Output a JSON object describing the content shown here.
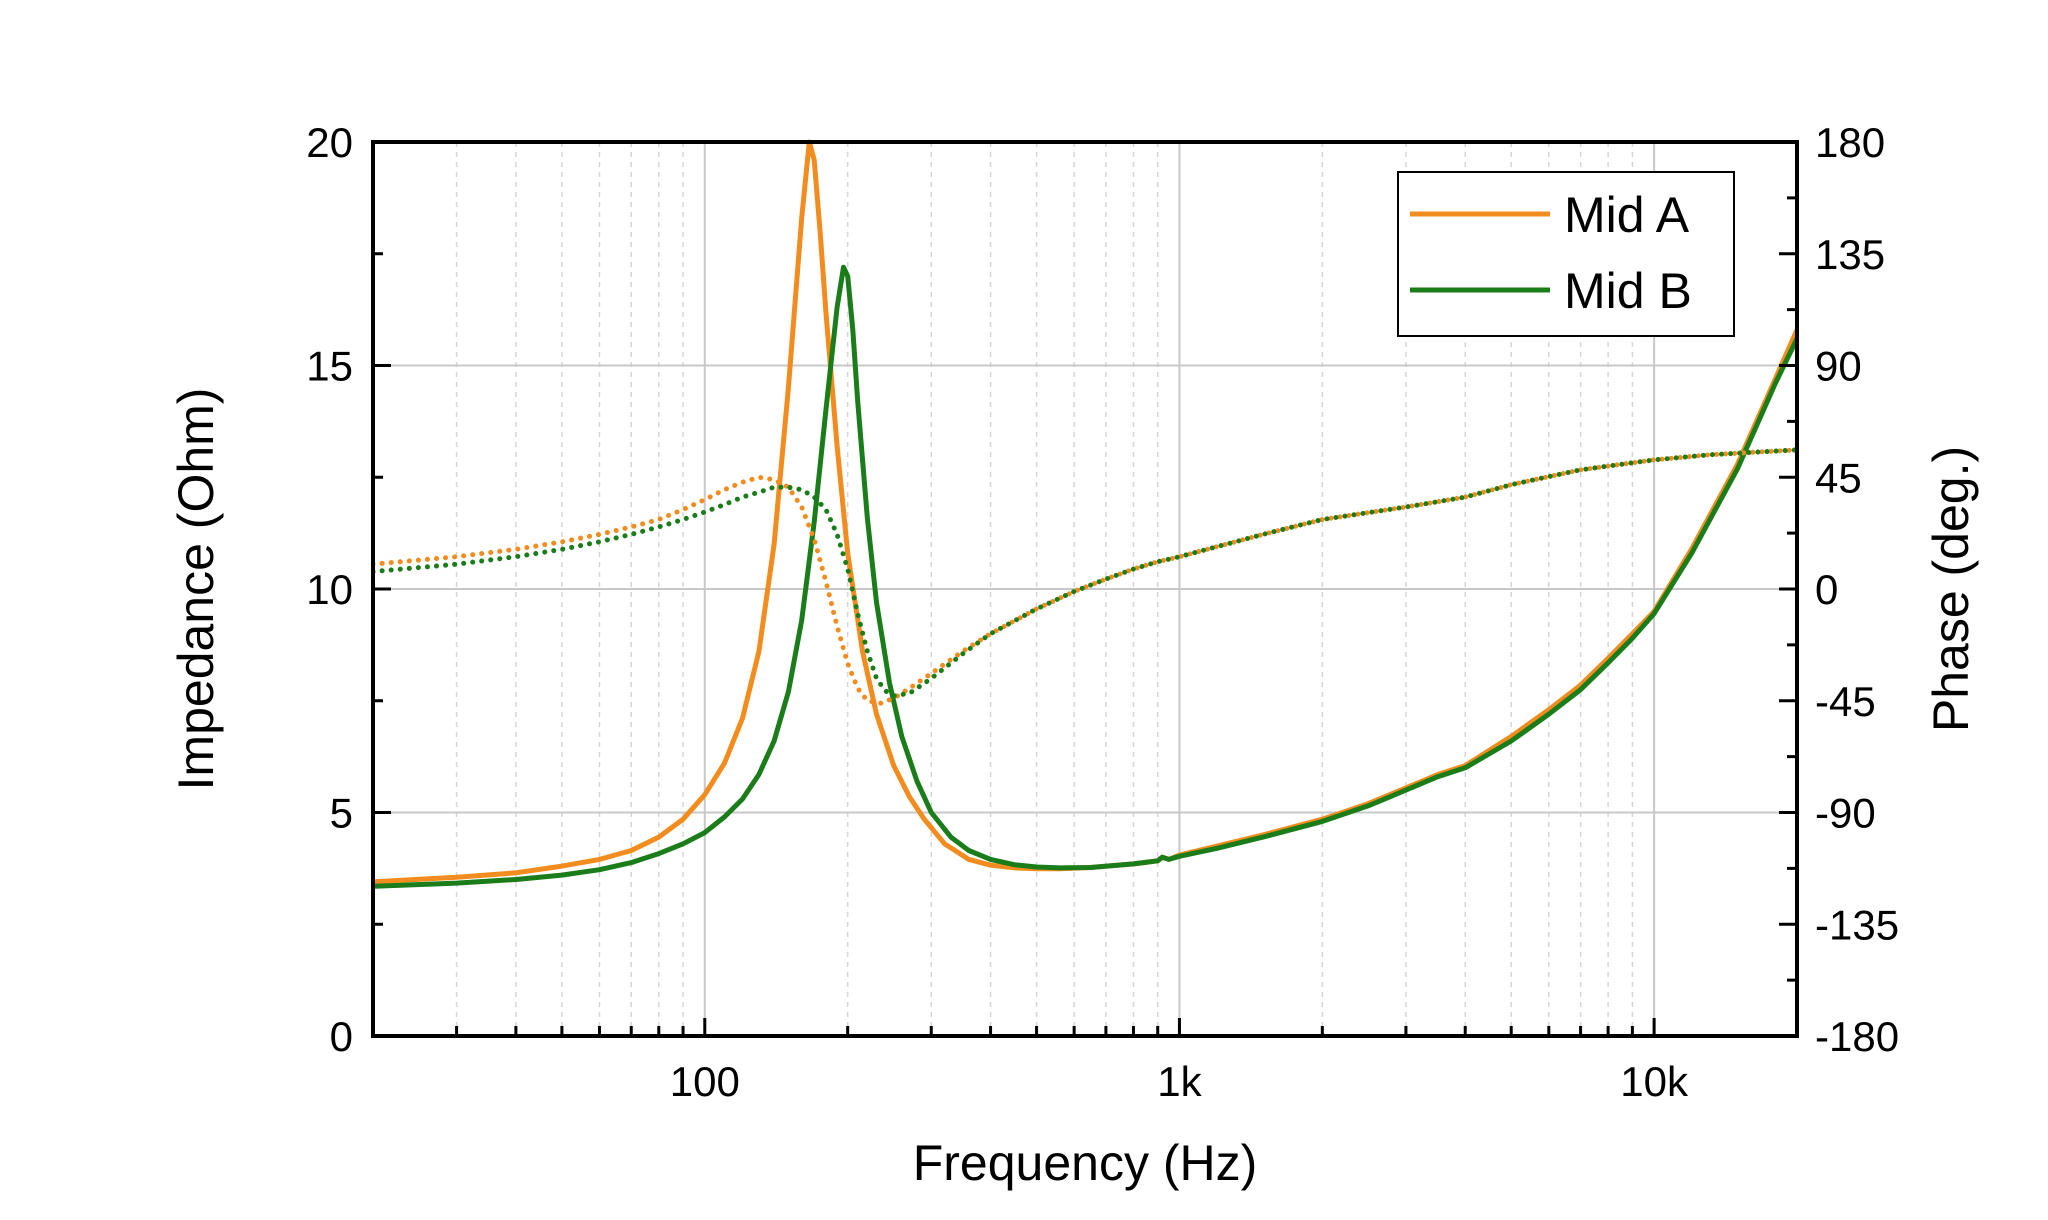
{
  "chart_data": {
    "type": "line",
    "xlabel": "Frequency (Hz)",
    "ylabel_left": "Impedance (Ohm)",
    "ylabel_right": "Phase (deg.)",
    "xscale": "log",
    "xlim": [
      20,
      20000
    ],
    "ylim_left": [
      0,
      20
    ],
    "ylim_right": [
      -180,
      180
    ],
    "x_ticks": [
      100,
      1000,
      10000
    ],
    "x_tick_labels": [
      "100",
      "1k",
      "10k"
    ],
    "y_left_ticks": [
      0,
      5,
      10,
      15,
      20
    ],
    "y_left_tick_labels": [
      "0",
      "5",
      "10",
      "15",
      "20"
    ],
    "y_right_ticks": [
      -180,
      -135,
      -90,
      -45,
      0,
      45,
      90,
      135,
      180
    ],
    "y_right_tick_labels": [
      "-180",
      "-135",
      "-90",
      "-45",
      "0",
      "45",
      "90",
      "135",
      "180"
    ],
    "grid": true,
    "legend_position": "top-right",
    "colors": {
      "Mid A": "#F28C1E",
      "Mid B": "#1A7D1A"
    },
    "series": [
      {
        "name": "Mid A",
        "axis": "left",
        "style": "solid",
        "x": [
          20,
          30,
          40,
          50,
          60,
          70,
          80,
          90,
          100,
          110,
          120,
          130,
          140,
          150,
          160,
          166,
          170,
          175,
          180,
          190,
          200,
          215,
          230,
          250,
          270,
          290,
          320,
          360,
          400,
          450,
          500,
          560,
          650,
          800,
          900,
          920,
          950,
          1000,
          1200,
          1500,
          2000,
          2500,
          3000,
          3500,
          4000,
          5000,
          6000,
          7000,
          8000,
          9000,
          10000,
          12000,
          15000,
          18000,
          20000
        ],
        "y": [
          3.45,
          3.55,
          3.65,
          3.8,
          3.95,
          4.15,
          4.45,
          4.85,
          5.4,
          6.1,
          7.1,
          8.6,
          11.0,
          14.5,
          18.3,
          20.0,
          19.6,
          18.0,
          16.2,
          13.2,
          10.8,
          8.6,
          7.2,
          6.05,
          5.35,
          4.85,
          4.3,
          3.95,
          3.82,
          3.76,
          3.74,
          3.74,
          3.77,
          3.85,
          3.92,
          4.0,
          3.95,
          4.05,
          4.25,
          4.5,
          4.85,
          5.2,
          5.55,
          5.85,
          6.05,
          6.7,
          7.3,
          7.85,
          8.45,
          9.0,
          9.5,
          10.9,
          12.8,
          14.7,
          15.8
        ]
      },
      {
        "name": "Mid B",
        "axis": "left",
        "style": "solid",
        "x": [
          20,
          30,
          40,
          50,
          60,
          70,
          80,
          90,
          100,
          110,
          120,
          130,
          140,
          150,
          160,
          170,
          180,
          190,
          196,
          200,
          205,
          210,
          220,
          230,
          245,
          260,
          280,
          300,
          330,
          360,
          400,
          450,
          500,
          560,
          650,
          800,
          900,
          920,
          950,
          1000,
          1200,
          1500,
          2000,
          2500,
          3000,
          3500,
          4000,
          5000,
          6000,
          7000,
          8000,
          9000,
          10000,
          12000,
          15000,
          18000,
          20000
        ],
        "y": [
          3.35,
          3.42,
          3.5,
          3.6,
          3.72,
          3.88,
          4.08,
          4.3,
          4.55,
          4.9,
          5.3,
          5.85,
          6.6,
          7.7,
          9.3,
          11.5,
          14.0,
          16.3,
          17.2,
          17.0,
          15.8,
          14.2,
          11.6,
          9.7,
          7.9,
          6.7,
          5.7,
          5.0,
          4.45,
          4.15,
          3.95,
          3.83,
          3.78,
          3.76,
          3.77,
          3.85,
          3.92,
          4.0,
          3.95,
          4.02,
          4.2,
          4.45,
          4.8,
          5.15,
          5.5,
          5.8,
          6.0,
          6.6,
          7.2,
          7.75,
          8.35,
          8.9,
          9.45,
          10.8,
          12.7,
          14.6,
          15.6
        ]
      },
      {
        "name": "Mid A",
        "axis": "right",
        "style": "dotted",
        "x": [
          20,
          30,
          40,
          50,
          60,
          70,
          80,
          90,
          100,
          110,
          120,
          130,
          140,
          150,
          160,
          170,
          180,
          190,
          200,
          210,
          220,
          235,
          250,
          270,
          300,
          350,
          400,
          500,
          600,
          700,
          800,
          900,
          950,
          1000,
          1500,
          2000,
          3000,
          4000,
          5000,
          7000,
          10000,
          13000,
          16000,
          20000
        ],
        "y": [
          10,
          13,
          16,
          19,
          22,
          25,
          28,
          32,
          36,
          40,
          43,
          45,
          44,
          41,
          33,
          20,
          3,
          -15,
          -30,
          -40,
          -45,
          -46,
          -44,
          -40,
          -34,
          -25,
          -18,
          -8,
          -1,
          4,
          8,
          11,
          12,
          13,
          22,
          28,
          33,
          37,
          42,
          48,
          52,
          54,
          55,
          56
        ]
      },
      {
        "name": "Mid B",
        "axis": "right",
        "style": "dotted",
        "x": [
          20,
          30,
          40,
          50,
          60,
          70,
          80,
          90,
          100,
          110,
          120,
          130,
          140,
          150,
          160,
          170,
          180,
          190,
          200,
          210,
          220,
          230,
          240,
          250,
          270,
          300,
          350,
          400,
          500,
          600,
          700,
          800,
          900,
          950,
          1000,
          1500,
          2000,
          3000,
          4000,
          5000,
          7000,
          10000,
          13000,
          16000,
          20000
        ],
        "y": [
          7,
          10,
          13,
          16,
          19,
          22,
          25,
          28,
          31,
          34,
          37,
          39,
          41,
          41,
          40,
          37,
          32,
          22,
          8,
          -10,
          -25,
          -36,
          -41,
          -43,
          -42,
          -36,
          -26,
          -18,
          -8,
          -1,
          4,
          8,
          11,
          12,
          13,
          22,
          28,
          33,
          37,
          42,
          48,
          52,
          54,
          55,
          56
        ]
      }
    ]
  }
}
